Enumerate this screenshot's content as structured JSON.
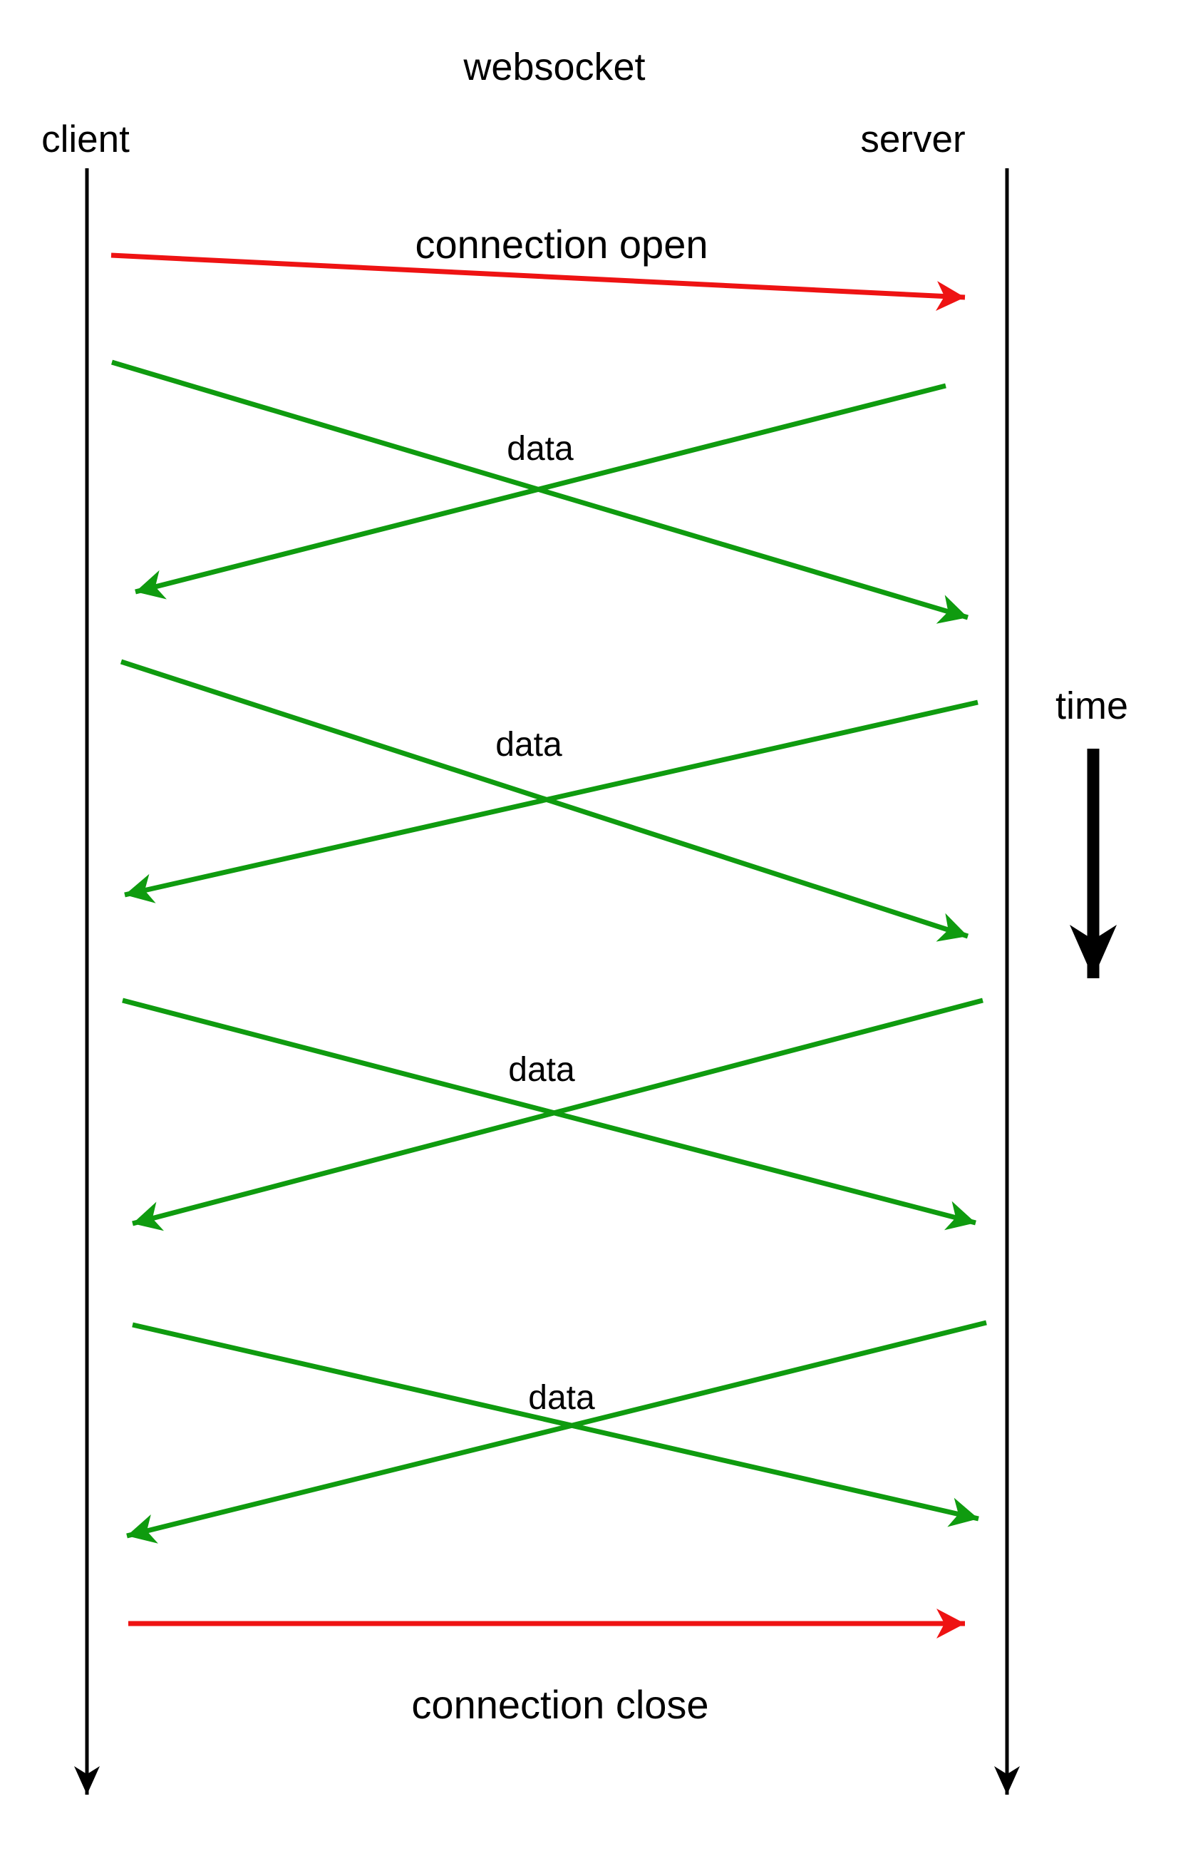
{
  "title": "websocket",
  "participants": [
    {
      "name": "client",
      "side": "left"
    },
    {
      "name": "server",
      "side": "right"
    }
  ],
  "axis": {
    "label": "time",
    "direction": "down"
  },
  "colors": {
    "connection": "#ee1313",
    "data": "#0f9b0f",
    "lifeline": "#000000",
    "text": "#000000",
    "background": "#ffffff"
  },
  "events": [
    {
      "label": "connection open",
      "type": "connection",
      "from": "client",
      "to": "server",
      "color_key": "connection"
    },
    {
      "label": "data",
      "type": "data-exchange",
      "color_key": "data",
      "arrows": [
        {
          "from": "client",
          "to": "server"
        },
        {
          "from": "server",
          "to": "client"
        }
      ]
    },
    {
      "label": "data",
      "type": "data-exchange",
      "color_key": "data",
      "arrows": [
        {
          "from": "client",
          "to": "server"
        },
        {
          "from": "server",
          "to": "client"
        }
      ]
    },
    {
      "label": "data",
      "type": "data-exchange",
      "color_key": "data",
      "arrows": [
        {
          "from": "client",
          "to": "server"
        },
        {
          "from": "server",
          "to": "client"
        }
      ]
    },
    {
      "label": "data",
      "type": "data-exchange",
      "color_key": "data",
      "arrows": [
        {
          "from": "client",
          "to": "server"
        },
        {
          "from": "server",
          "to": "client"
        }
      ]
    },
    {
      "label": "connection close",
      "type": "connection",
      "from": "client",
      "to": "server",
      "color_key": "connection"
    }
  ]
}
